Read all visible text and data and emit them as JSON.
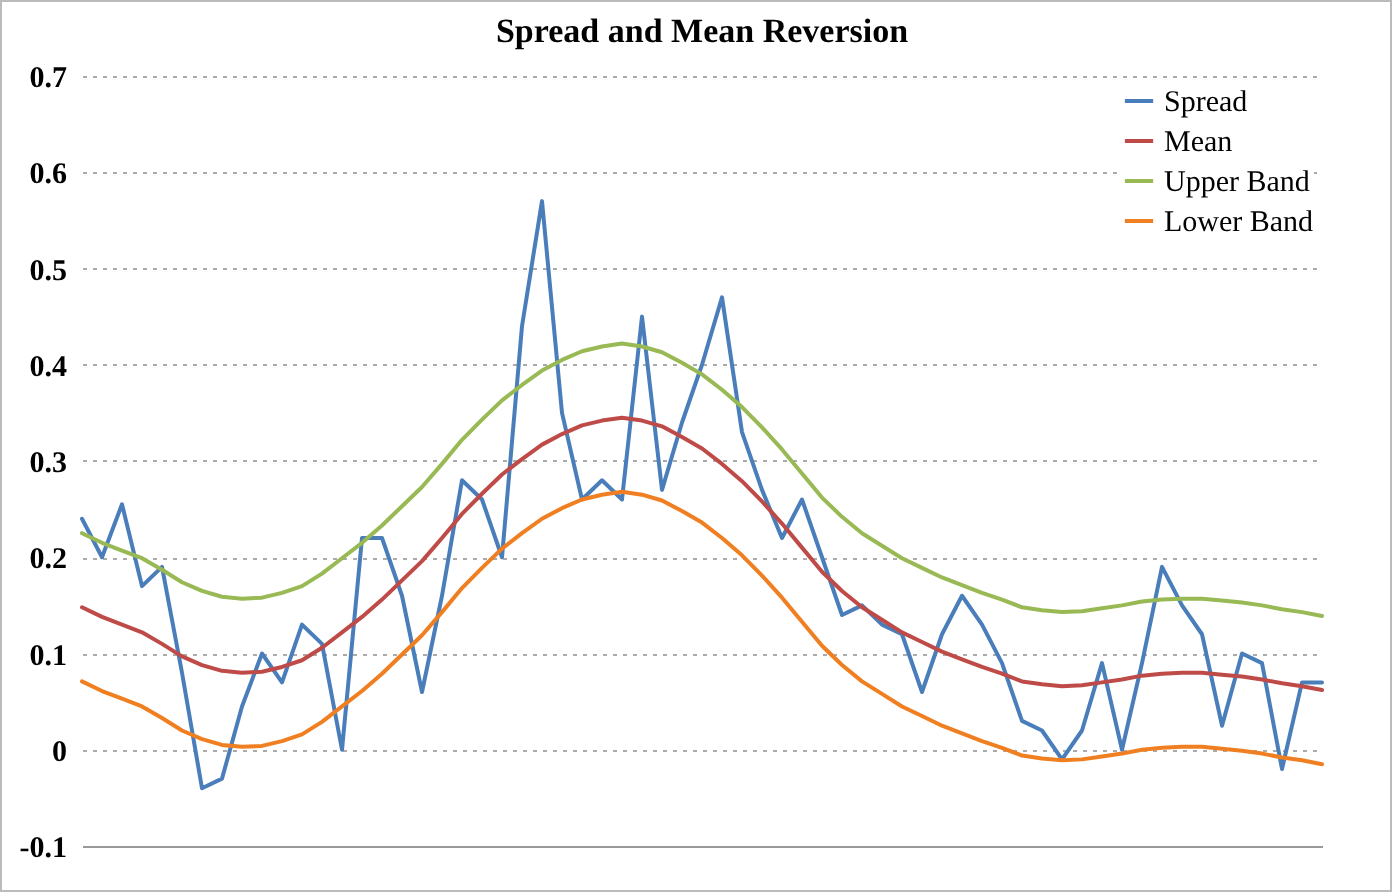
{
  "chart_data": {
    "type": "line",
    "title": "Spread and Mean Reversion",
    "categories": [
      null,
      null,
      null,
      null,
      null,
      null,
      null,
      null,
      null,
      null,
      null,
      null,
      null,
      null,
      null,
      null,
      null,
      null,
      null,
      null,
      null,
      null,
      null,
      null,
      null,
      null,
      null,
      null,
      null,
      null,
      null,
      null,
      null,
      null,
      null,
      null,
      null,
      null,
      null,
      null,
      null,
      null,
      null,
      null,
      null,
      null,
      null,
      null,
      null,
      null,
      null,
      null,
      null,
      null,
      null,
      null,
      null,
      null,
      null,
      null,
      null,
      null,
      null
    ],
    "series": [
      {
        "name": "Spread",
        "color": "#4a7ebb",
        "values": [
          0.24,
          0.2,
          0.255,
          0.17,
          0.19,
          0.08,
          -0.04,
          -0.03,
          0.045,
          0.1,
          0.07,
          0.13,
          0.11,
          0.0,
          0.22,
          0.22,
          0.16,
          0.06,
          0.16,
          0.28,
          0.26,
          0.2,
          0.44,
          0.57,
          0.35,
          0.26,
          0.28,
          0.26,
          0.45,
          0.27,
          0.34,
          0.4,
          0.47,
          0.33,
          0.27,
          0.22,
          0.26,
          0.2,
          0.14,
          0.15,
          0.13,
          0.12,
          0.06,
          0.12,
          0.16,
          0.13,
          0.09,
          0.03,
          0.02,
          -0.01,
          0.02,
          0.09,
          0.0,
          0.09,
          0.19,
          0.15,
          0.12,
          0.025,
          0.1,
          0.09,
          -0.02,
          0.07,
          0.07
        ]
      },
      {
        "name": "Mean",
        "color": "#be4b48",
        "values": [
          0.148,
          0.138,
          0.13,
          0.122,
          0.11,
          0.097,
          0.088,
          0.082,
          0.08,
          0.081,
          0.086,
          0.093,
          0.106,
          0.122,
          0.138,
          0.156,
          0.176,
          0.196,
          0.22,
          0.245,
          0.266,
          0.286,
          0.302,
          0.317,
          0.328,
          0.337,
          0.342,
          0.345,
          0.342,
          0.336,
          0.325,
          0.313,
          0.297,
          0.279,
          0.258,
          0.235,
          0.21,
          0.185,
          0.165,
          0.148,
          0.135,
          0.122,
          0.112,
          0.102,
          0.094,
          0.086,
          0.079,
          0.071,
          0.068,
          0.066,
          0.067,
          0.07,
          0.073,
          0.077,
          0.079,
          0.08,
          0.08,
          0.078,
          0.076,
          0.073,
          0.069,
          0.066,
          0.062
        ]
      },
      {
        "name": "Upper Band",
        "color": "#98b954",
        "values": [
          0.225,
          0.215,
          0.207,
          0.199,
          0.187,
          0.174,
          0.165,
          0.159,
          0.157,
          0.158,
          0.163,
          0.17,
          0.183,
          0.199,
          0.215,
          0.233,
          0.253,
          0.273,
          0.297,
          0.322,
          0.343,
          0.363,
          0.379,
          0.394,
          0.405,
          0.414,
          0.419,
          0.422,
          0.419,
          0.413,
          0.402,
          0.39,
          0.374,
          0.356,
          0.335,
          0.312,
          0.287,
          0.262,
          0.242,
          0.225,
          0.212,
          0.199,
          0.189,
          0.179,
          0.171,
          0.163,
          0.156,
          0.148,
          0.145,
          0.143,
          0.144,
          0.147,
          0.15,
          0.154,
          0.156,
          0.157,
          0.157,
          0.155,
          0.153,
          0.15,
          0.146,
          0.143,
          0.139
        ]
      },
      {
        "name": "Lower Band",
        "color": "#f07f21",
        "values": [
          0.071,
          0.061,
          0.053,
          0.045,
          0.033,
          0.02,
          0.011,
          0.005,
          0.003,
          0.004,
          0.009,
          0.016,
          0.029,
          0.045,
          0.061,
          0.079,
          0.099,
          0.119,
          0.143,
          0.168,
          0.189,
          0.209,
          0.225,
          0.24,
          0.251,
          0.26,
          0.265,
          0.268,
          0.265,
          0.259,
          0.248,
          0.236,
          0.22,
          0.202,
          0.181,
          0.158,
          0.133,
          0.108,
          0.088,
          0.071,
          0.058,
          0.045,
          0.035,
          0.025,
          0.017,
          0.009,
          0.002,
          -0.006,
          -0.009,
          -0.011,
          -0.01,
          -0.007,
          -0.004,
          0.0,
          0.002,
          0.003,
          0.003,
          0.001,
          -0.001,
          -0.004,
          -0.008,
          -0.011,
          -0.015
        ]
      }
    ],
    "ylim": [
      -0.1,
      0.7
    ],
    "yticks": [
      -0.1,
      0,
      0.1,
      0.2,
      0.3,
      0.4,
      0.5,
      0.6,
      0.7
    ],
    "grid": "y",
    "legend": "top right",
    "tick_labels": "y",
    "line_style": "solid",
    "marker": "none"
  }
}
